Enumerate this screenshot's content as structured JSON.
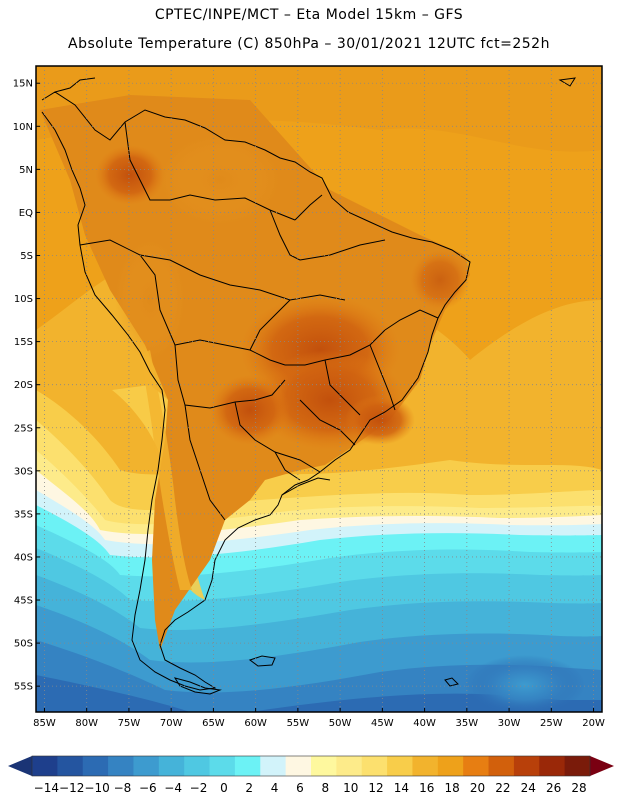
{
  "header": {
    "line1": "CPTEC/INPE/MCT –  Eta Model 15km – GFS",
    "line2": "Absolute Temperature (C) 850hPa – 30/01/2021 12UTC fct=252h"
  },
  "map": {
    "lon_range": [
      -86,
      -19
    ],
    "lat_range": [
      -58,
      17
    ],
    "lat_ticks": [
      {
        "value": 15,
        "label": "15N"
      },
      {
        "value": 10,
        "label": "10N"
      },
      {
        "value": 5,
        "label": "5N"
      },
      {
        "value": 0,
        "label": "EQ"
      },
      {
        "value": -5,
        "label": "5S"
      },
      {
        "value": -10,
        "label": "10S"
      },
      {
        "value": -15,
        "label": "15S"
      },
      {
        "value": -20,
        "label": "20S"
      },
      {
        "value": -25,
        "label": "25S"
      },
      {
        "value": -30,
        "label": "30S"
      },
      {
        "value": -35,
        "label": "35S"
      },
      {
        "value": -40,
        "label": "40S"
      },
      {
        "value": -45,
        "label": "45S"
      },
      {
        "value": -50,
        "label": "50S"
      },
      {
        "value": -55,
        "label": "55S"
      }
    ],
    "lon_ticks": [
      {
        "value": -85,
        "label": "85W"
      },
      {
        "value": -80,
        "label": "80W"
      },
      {
        "value": -75,
        "label": "75W"
      },
      {
        "value": -70,
        "label": "70W"
      },
      {
        "value": -65,
        "label": "65W"
      },
      {
        "value": -60,
        "label": "60W"
      },
      {
        "value": -55,
        "label": "55W"
      },
      {
        "value": -50,
        "label": "50W"
      },
      {
        "value": -45,
        "label": "45W"
      },
      {
        "value": -40,
        "label": "40W"
      },
      {
        "value": -35,
        "label": "35W"
      },
      {
        "value": -30,
        "label": "30W"
      },
      {
        "value": -25,
        "label": "25W"
      },
      {
        "value": -20,
        "label": "20W"
      }
    ]
  },
  "colorbar": {
    "labels": [
      "−14",
      "−12",
      "−10",
      "−8",
      "−6",
      "−4",
      "−2",
      "0",
      "2",
      "4",
      "6",
      "8",
      "10",
      "12",
      "14",
      "16",
      "18",
      "20",
      "22",
      "24",
      "26",
      "28"
    ],
    "colors": [
      "#1e3f8c",
      "#2455a0",
      "#2c6bb3",
      "#3583c2",
      "#3d9bcf",
      "#45b3d9",
      "#4fc8e2",
      "#5cdbea",
      "#6cf2f5",
      "#d2f3fa",
      "#fef7e2",
      "#fef89e",
      "#fdeb8a",
      "#fce06e",
      "#f8cd4a",
      "#f2b32d",
      "#eea11a",
      "#e77e12",
      "#d2600c",
      "#b8400a",
      "#9a2808",
      "#7a1b0a"
    ],
    "under_color": "#1a3475",
    "over_color": "#7a0012"
  }
}
